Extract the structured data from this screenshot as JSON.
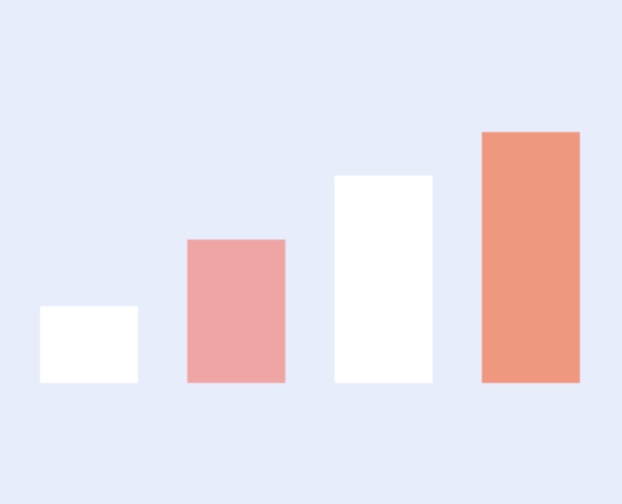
{
  "colors": {
    "background": "#e7edfb",
    "bars": [
      "#ffffff",
      "#f0a5a5",
      "#ffffff",
      "#f0977f"
    ]
  },
  "chart_data": {
    "type": "bar",
    "categories": [
      "",
      "",
      "",
      ""
    ],
    "values": [
      3,
      5.6,
      8.1,
      9.8
    ],
    "title": "",
    "xlabel": "",
    "ylabel": "",
    "ylim": [
      0,
      10
    ],
    "grid": false,
    "legend": "none"
  }
}
